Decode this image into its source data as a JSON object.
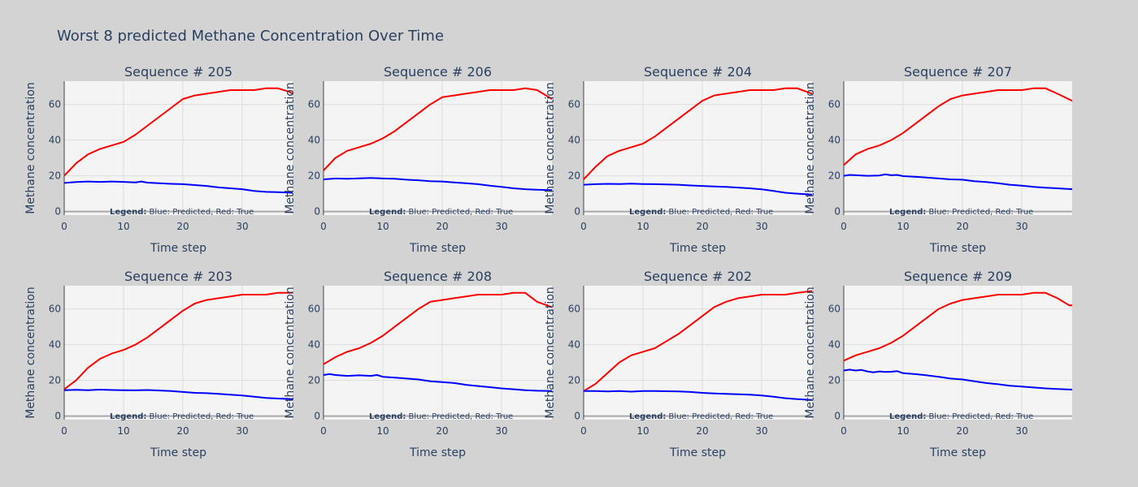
{
  "figure": {
    "title": "Worst 8 predicted Methane Concentration Over Time",
    "background": "#d3d3d3",
    "plot_background": "#f4f4f4",
    "grid_color": "#dcdcdc",
    "zero_line_color": "#a9a9a9",
    "text_color": "#2a3f5f",
    "predicted_color": "#0000ff",
    "true_color": "#ff0000"
  },
  "legend_note": {
    "bold": "Legend:",
    "text": " Blue: Predicted, Red: True"
  },
  "chart_data": [
    {
      "type": "line",
      "title": "Sequence # 205",
      "xlabel": "Time step",
      "ylabel": "Methane concentration",
      "xlim": [
        0,
        38.5
      ],
      "ylim": [
        -2,
        73
      ],
      "xticks": [
        0,
        10,
        20,
        30
      ],
      "yticks": [
        0,
        20,
        40,
        60
      ],
      "grid": true,
      "series": [
        {
          "role": "true",
          "x": [
            0,
            2,
            4,
            6,
            8,
            10,
            12,
            14,
            16,
            18,
            20,
            22,
            24,
            26,
            28,
            30,
            32,
            34,
            36,
            38,
            38.5
          ],
          "y": [
            20,
            27,
            32,
            35,
            37,
            39,
            43,
            48,
            53,
            58,
            63,
            65,
            66,
            67,
            68,
            68,
            68,
            69,
            69,
            67,
            66
          ]
        },
        {
          "role": "predicted",
          "x": [
            0,
            2,
            4,
            6,
            8,
            10,
            12,
            13,
            14,
            16,
            18,
            20,
            22,
            24,
            26,
            28,
            30,
            32,
            34,
            36,
            38.5
          ],
          "y": [
            16,
            16.5,
            16.8,
            16.6,
            16.8,
            16.6,
            16.3,
            16.8,
            16.2,
            15.8,
            15.5,
            15.3,
            14.8,
            14.3,
            13.5,
            13,
            12.5,
            11.5,
            11,
            10.8,
            10.5
          ]
        }
      ]
    },
    {
      "type": "line",
      "title": "Sequence # 206",
      "xlabel": "Time step",
      "ylabel": "Methane concentration",
      "xlim": [
        0,
        38.5
      ],
      "ylim": [
        -2,
        73
      ],
      "xticks": [
        0,
        10,
        20,
        30
      ],
      "yticks": [
        0,
        20,
        40,
        60
      ],
      "grid": true,
      "series": [
        {
          "role": "true",
          "x": [
            0,
            2,
            4,
            6,
            8,
            10,
            12,
            14,
            16,
            18,
            20,
            22,
            24,
            26,
            28,
            30,
            32,
            34,
            36,
            38.5
          ],
          "y": [
            23,
            30,
            34,
            36,
            38,
            41,
            45,
            50,
            55,
            60,
            64,
            65,
            66,
            67,
            68,
            68,
            68,
            69,
            68,
            63
          ]
        },
        {
          "role": "predicted",
          "x": [
            0,
            2,
            4,
            6,
            8,
            10,
            12,
            14,
            16,
            18,
            20,
            22,
            24,
            26,
            28,
            30,
            32,
            34,
            36,
            38.5
          ],
          "y": [
            18,
            18.5,
            18.3,
            18.6,
            18.8,
            18.5,
            18.3,
            17.8,
            17.5,
            17,
            16.8,
            16.3,
            15.8,
            15.3,
            14.5,
            13.8,
            13,
            12.5,
            12.2,
            12
          ]
        }
      ]
    },
    {
      "type": "line",
      "title": "Sequence # 204",
      "xlabel": "Time step",
      "ylabel": "Methane concentration",
      "xlim": [
        0,
        38.5
      ],
      "ylim": [
        -2,
        73
      ],
      "xticks": [
        0,
        10,
        20,
        30
      ],
      "yticks": [
        0,
        20,
        40,
        60
      ],
      "grid": true,
      "series": [
        {
          "role": "true",
          "x": [
            0,
            2,
            4,
            6,
            8,
            10,
            12,
            14,
            16,
            18,
            20,
            22,
            24,
            26,
            28,
            30,
            32,
            34,
            36,
            38.5
          ],
          "y": [
            18,
            25,
            31,
            34,
            36,
            38,
            42,
            47,
            52,
            57,
            62,
            65,
            66,
            67,
            68,
            68,
            68,
            69,
            69,
            66
          ]
        },
        {
          "role": "predicted",
          "x": [
            0,
            2,
            4,
            6,
            8,
            10,
            12,
            14,
            16,
            18,
            20,
            22,
            24,
            26,
            28,
            30,
            32,
            34,
            36,
            38.5
          ],
          "y": [
            15,
            15.3,
            15.5,
            15.4,
            15.6,
            15.4,
            15.3,
            15.2,
            15,
            14.6,
            14.3,
            14,
            13.8,
            13.4,
            13,
            12.4,
            11.5,
            10.5,
            10,
            9.5
          ]
        }
      ]
    },
    {
      "type": "line",
      "title": "Sequence # 207",
      "xlabel": "Time step",
      "ylabel": "Methane concentration",
      "xlim": [
        0,
        38.5
      ],
      "ylim": [
        -2,
        73
      ],
      "xticks": [
        0,
        10,
        20,
        30
      ],
      "yticks": [
        0,
        20,
        40,
        60
      ],
      "grid": true,
      "series": [
        {
          "role": "true",
          "x": [
            0,
            2,
            4,
            6,
            8,
            10,
            12,
            14,
            16,
            18,
            20,
            22,
            24,
            26,
            28,
            30,
            32,
            34,
            36,
            38.5
          ],
          "y": [
            26,
            32,
            35,
            37,
            40,
            44,
            49,
            54,
            59,
            63,
            65,
            66,
            67,
            68,
            68,
            68,
            69,
            69,
            66,
            62
          ]
        },
        {
          "role": "predicted",
          "x": [
            0,
            1,
            2,
            4,
            6,
            7,
            8,
            9,
            10,
            12,
            14,
            16,
            18,
            20,
            22,
            24,
            26,
            28,
            30,
            32,
            34,
            36,
            38.5
          ],
          "y": [
            20,
            20.5,
            20.3,
            20,
            20.2,
            20.8,
            20.3,
            20.5,
            19.8,
            19.5,
            19,
            18.5,
            18,
            17.8,
            17,
            16.5,
            15.8,
            15,
            14.5,
            13.8,
            13.3,
            13,
            12.5
          ]
        }
      ]
    },
    {
      "type": "line",
      "title": "Sequence # 203",
      "xlabel": "Time step",
      "ylabel": "Methane concentration",
      "xlim": [
        0,
        38.5
      ],
      "ylim": [
        -2,
        73
      ],
      "xticks": [
        0,
        10,
        20,
        30
      ],
      "yticks": [
        0,
        20,
        40,
        60
      ],
      "grid": true,
      "series": [
        {
          "role": "true",
          "x": [
            0,
            2,
            4,
            6,
            8,
            10,
            12,
            14,
            16,
            18,
            20,
            22,
            24,
            26,
            28,
            30,
            32,
            34,
            36,
            38.5
          ],
          "y": [
            15,
            20,
            27,
            32,
            35,
            37,
            40,
            44,
            49,
            54,
            59,
            63,
            65,
            66,
            67,
            68,
            68,
            68,
            69,
            69
          ]
        },
        {
          "role": "predicted",
          "x": [
            0,
            2,
            4,
            6,
            8,
            10,
            12,
            14,
            16,
            18,
            20,
            22,
            24,
            26,
            28,
            30,
            32,
            34,
            36,
            38.5
          ],
          "y": [
            14.5,
            14.7,
            14.5,
            14.8,
            14.6,
            14.5,
            14.4,
            14.6,
            14.3,
            14,
            13.5,
            13,
            12.8,
            12.4,
            12,
            11.5,
            10.8,
            10.2,
            9.8,
            9.5
          ]
        }
      ]
    },
    {
      "type": "line",
      "title": "Sequence # 208",
      "xlabel": "Time step",
      "ylabel": "Methane concentration",
      "xlim": [
        0,
        38.5
      ],
      "ylim": [
        -2,
        73
      ],
      "xticks": [
        0,
        10,
        20,
        30
      ],
      "yticks": [
        0,
        20,
        40,
        60
      ],
      "grid": true,
      "series": [
        {
          "role": "true",
          "x": [
            0,
            2,
            4,
            6,
            8,
            10,
            12,
            14,
            16,
            18,
            20,
            22,
            24,
            26,
            28,
            30,
            32,
            34,
            36,
            38.5
          ],
          "y": [
            29,
            33,
            36,
            38,
            41,
            45,
            50,
            55,
            60,
            64,
            65,
            66,
            67,
            68,
            68,
            68,
            69,
            69,
            64,
            61
          ]
        },
        {
          "role": "predicted",
          "x": [
            0,
            1,
            2,
            4,
            6,
            8,
            9,
            10,
            12,
            14,
            16,
            18,
            20,
            22,
            24,
            26,
            28,
            30,
            32,
            34,
            36,
            38.5
          ],
          "y": [
            23,
            23.5,
            23,
            22.5,
            22.8,
            22.5,
            23,
            22,
            21.5,
            21,
            20.5,
            19.5,
            19,
            18.5,
            17.5,
            16.8,
            16.2,
            15.5,
            15,
            14.5,
            14.2,
            14
          ]
        }
      ]
    },
    {
      "type": "line",
      "title": "Sequence # 202",
      "xlabel": "Time step",
      "ylabel": "Methane concentration",
      "xlim": [
        0,
        38.5
      ],
      "ylim": [
        -2,
        73
      ],
      "xticks": [
        0,
        10,
        20,
        30
      ],
      "yticks": [
        0,
        20,
        40,
        60
      ],
      "grid": true,
      "series": [
        {
          "role": "true",
          "x": [
            0,
            2,
            4,
            6,
            8,
            10,
            12,
            14,
            16,
            18,
            20,
            22,
            24,
            26,
            28,
            30,
            32,
            34,
            36,
            38.5
          ],
          "y": [
            14,
            18,
            24,
            30,
            34,
            36,
            38,
            42,
            46,
            51,
            56,
            61,
            64,
            66,
            67,
            68,
            68,
            68,
            69,
            70
          ]
        },
        {
          "role": "predicted",
          "x": [
            0,
            2,
            4,
            6,
            8,
            10,
            12,
            14,
            16,
            18,
            20,
            22,
            24,
            26,
            28,
            30,
            32,
            34,
            36,
            38.5
          ],
          "y": [
            14,
            14,
            13.8,
            14,
            13.7,
            14,
            14,
            13.9,
            13.8,
            13.5,
            13,
            12.7,
            12.4,
            12.2,
            12,
            11.5,
            10.8,
            10,
            9.5,
            9
          ]
        }
      ]
    },
    {
      "type": "line",
      "title": "Sequence # 209",
      "xlabel": "Time step",
      "ylabel": "Methane concentration",
      "xlim": [
        0,
        38.5
      ],
      "ylim": [
        -2,
        73
      ],
      "xticks": [
        0,
        10,
        20,
        30
      ],
      "yticks": [
        0,
        20,
        40,
        60
      ],
      "grid": true,
      "series": [
        {
          "role": "true",
          "x": [
            0,
            2,
            4,
            6,
            8,
            10,
            12,
            14,
            16,
            18,
            20,
            22,
            24,
            26,
            28,
            30,
            32,
            34,
            36,
            38,
            38.5
          ],
          "y": [
            31,
            34,
            36,
            38,
            41,
            45,
            50,
            55,
            60,
            63,
            65,
            66,
            67,
            68,
            68,
            68,
            69,
            69,
            66,
            62,
            62
          ]
        },
        {
          "role": "predicted",
          "x": [
            0,
            1,
            2,
            3,
            4,
            5,
            6,
            7,
            8,
            9,
            10,
            12,
            14,
            16,
            18,
            20,
            22,
            24,
            26,
            28,
            30,
            32,
            34,
            36,
            38.5
          ],
          "y": [
            25.5,
            26,
            25.5,
            25.8,
            25,
            24.5,
            25,
            24.7,
            24.8,
            25.2,
            24,
            23.5,
            22.8,
            22,
            21,
            20.5,
            19.5,
            18.5,
            17.8,
            17,
            16.5,
            16,
            15.5,
            15.2,
            14.8
          ]
        }
      ]
    }
  ]
}
